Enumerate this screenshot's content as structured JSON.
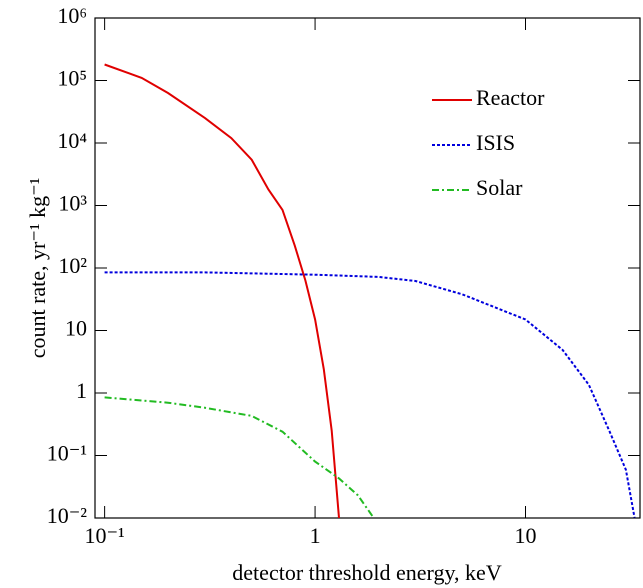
{
  "chart_data": {
    "type": "line",
    "xlabel": "detector threshold energy, keV",
    "ylabel": "count rate, yr⁻¹ kg⁻¹",
    "xscale": "log",
    "yscale": "log",
    "xlim": [
      0.09,
      35
    ],
    "ylim": [
      0.01,
      1000000
    ],
    "xticks": [
      {
        "value": 0.1,
        "label": "10⁻¹"
      },
      1,
      10
    ],
    "yticks": [
      {
        "value": 0.01,
        "label": "10⁻²"
      },
      {
        "value": 0.1,
        "label": "10⁻¹"
      },
      1,
      10,
      {
        "value": 100,
        "label": "10²"
      },
      {
        "value": 1000,
        "label": "10³"
      },
      {
        "value": 10000,
        "label": "10⁴"
      },
      {
        "value": 100000,
        "label": "10⁵"
      },
      {
        "value": 1000000,
        "label": "10⁶"
      }
    ],
    "legend": "upper right",
    "series": [
      {
        "name": "Reactor",
        "color": "#e00000",
        "style": "solid",
        "x": [
          0.1,
          0.15,
          0.2,
          0.3,
          0.4,
          0.5,
          0.6,
          0.7,
          0.8,
          0.9,
          1.0,
          1.1,
          1.2,
          1.3
        ],
        "values": [
          180000,
          110000,
          63000,
          25000,
          12000,
          5400,
          1800,
          850,
          230,
          63,
          15,
          2.4,
          0.25,
          0.01
        ]
      },
      {
        "name": "ISIS",
        "color": "#0000dd",
        "style": "dotted",
        "x": [
          0.1,
          0.3,
          1,
          2,
          3,
          5,
          10,
          15,
          20,
          25,
          30,
          33
        ],
        "values": [
          85,
          85,
          78,
          72,
          62,
          38,
          15,
          4.9,
          1.35,
          0.25,
          0.059,
          0.01
        ]
      },
      {
        "name": "Solar",
        "color": "#22bb22",
        "style": "dashdot",
        "x": [
          0.1,
          0.2,
          0.3,
          0.5,
          0.7,
          1,
          1.3,
          1.6,
          1.9
        ],
        "values": [
          0.85,
          0.7,
          0.58,
          0.43,
          0.24,
          0.08,
          0.043,
          0.023,
          0.01
        ]
      }
    ]
  }
}
